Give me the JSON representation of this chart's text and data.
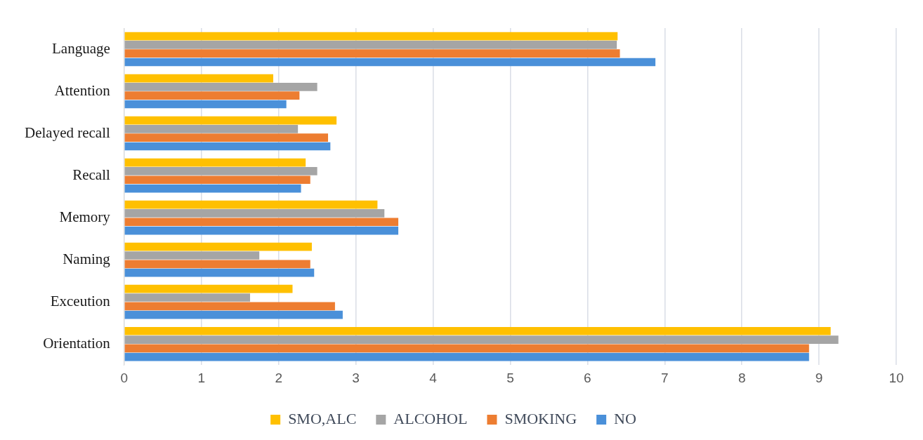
{
  "chart_data": {
    "type": "bar",
    "orientation": "horizontal",
    "categories": [
      "Language",
      "Attention",
      "Delayed recall",
      "Recall",
      "Memory",
      "Naming",
      "Exceution",
      "Orientation"
    ],
    "series": [
      {
        "name": "SMO,ALC",
        "color": "#ffc000",
        "values": [
          6.39,
          1.93,
          2.75,
          2.35,
          3.28,
          2.43,
          2.18,
          9.15
        ]
      },
      {
        "name": "ALCOHOL",
        "color": "#a5a5a5",
        "values": [
          6.38,
          2.5,
          2.25,
          2.5,
          3.37,
          1.75,
          1.63,
          9.25
        ]
      },
      {
        "name": "SMOKING",
        "color": "#ed7d31",
        "values": [
          6.42,
          2.27,
          2.64,
          2.41,
          3.55,
          2.41,
          2.73,
          8.87
        ]
      },
      {
        "name": "NO",
        "color": "#4a90d9",
        "values": [
          6.88,
          2.1,
          2.67,
          2.29,
          3.55,
          2.46,
          2.83,
          8.87
        ]
      }
    ],
    "xlim": [
      0,
      10
    ],
    "xticks": [
      0,
      1,
      2,
      3,
      4,
      5,
      6,
      7,
      8,
      9,
      10
    ],
    "grid": "x",
    "legend": "bottom"
  }
}
